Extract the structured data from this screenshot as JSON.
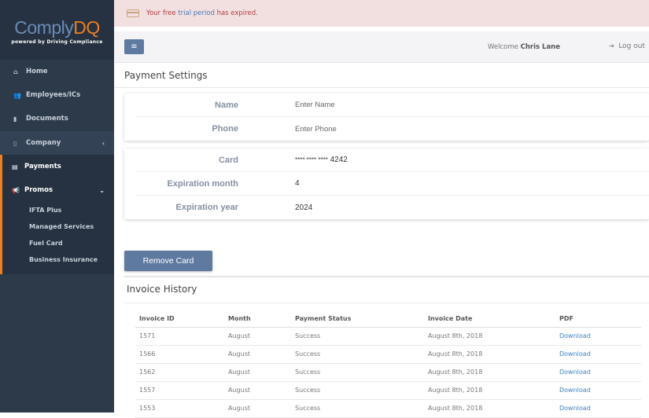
{
  "logo": {
    "brand_a": "Comply",
    "brand_b": "DQ",
    "tagline": "powered by Driving Compliance"
  },
  "sidebar": {
    "items": [
      {
        "label": "Home",
        "icon": "home-icon"
      },
      {
        "label": "Employees/ICs",
        "icon": "users-icon"
      },
      {
        "label": "Documents",
        "icon": "file-icon"
      },
      {
        "label": "Company",
        "icon": "building-icon"
      },
      {
        "label": "Payments",
        "icon": "credit-card-icon"
      },
      {
        "label": "Promos",
        "icon": "bullhorn-icon"
      }
    ],
    "promos_sub": [
      "IFTA Plus",
      "Managed Services",
      "Fuel Card",
      "Business Insurance"
    ]
  },
  "alert": {
    "pre": "Your free ",
    "link": "trial period",
    "post": " has expired."
  },
  "topbar": {
    "welcome": "Welcome ",
    "user": "Chris Lane",
    "logout": "Log out"
  },
  "payment": {
    "title": "Payment Settings",
    "name_label": "Name",
    "name_placeholder": "Enter Name",
    "phone_label": "Phone",
    "phone_placeholder": "Enter Phone",
    "card_label": "Card",
    "card_mask": "**** **** ****",
    "card_last4": "4242",
    "exp_month_label": "Expiration month",
    "exp_month": "4",
    "exp_year_label": "Expiration year",
    "exp_year": "2024",
    "remove_button": "Remove Card"
  },
  "invoices": {
    "title": "Invoice History",
    "columns": [
      "Invoice ID",
      "Month",
      "Payment Status",
      "Invoice Date",
      "PDF"
    ],
    "rows": [
      [
        "1571",
        "August",
        "Success",
        "August 8th, 2018",
        "Download"
      ],
      [
        "1566",
        "August",
        "Success",
        "August 8th, 2018",
        "Download"
      ],
      [
        "1562",
        "August",
        "Success",
        "August 8th, 2018",
        "Download"
      ],
      [
        "1557",
        "August",
        "Success",
        "August 8th, 2018",
        "Download"
      ],
      [
        "1553",
        "August",
        "Success",
        "August 8th, 2018",
        "Download"
      ]
    ]
  },
  "colors": {
    "accent": "#f07f1c",
    "button": "#5f7aa1",
    "sidebar": "#2c3a4a",
    "link": "#3b82c4"
  }
}
